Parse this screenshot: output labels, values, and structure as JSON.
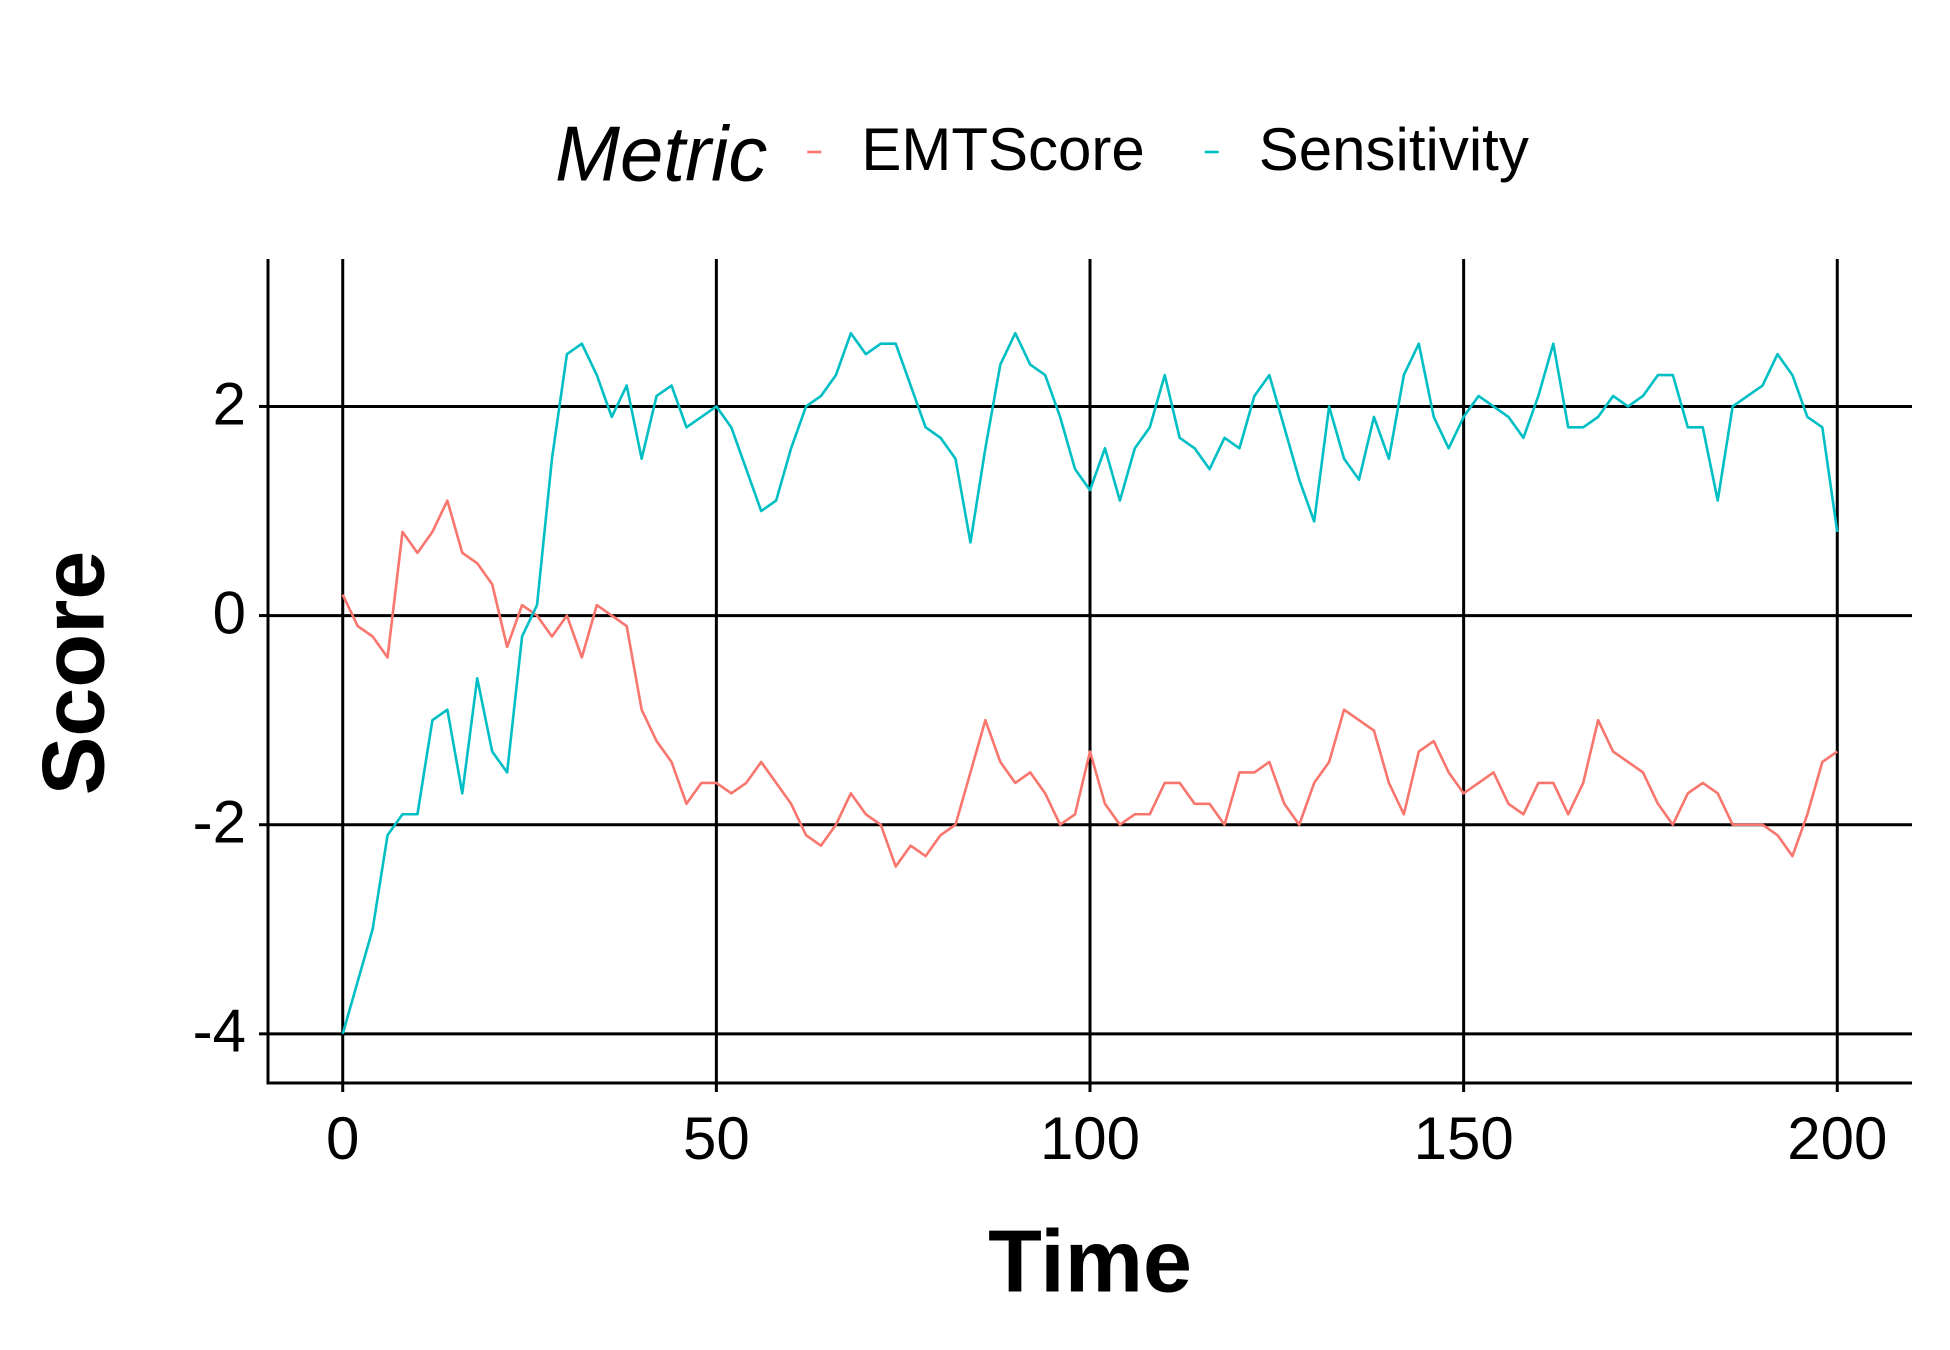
{
  "chart_data": {
    "type": "line",
    "x_label": "Time",
    "y_label": "Score",
    "legend_title": "Metric",
    "legend": "top",
    "grid": true,
    "xlim": [
      -10,
      210
    ],
    "ylim": [
      -4.47,
      3.41
    ],
    "xticks": [
      0,
      50,
      100,
      150,
      200
    ],
    "yticks": [
      -4,
      -2,
      0,
      2
    ],
    "x": [
      0,
      2,
      4,
      6,
      8,
      10,
      12,
      14,
      16,
      18,
      20,
      22,
      24,
      26,
      28,
      30,
      32,
      34,
      36,
      38,
      40,
      42,
      44,
      46,
      48,
      50,
      52,
      54,
      56,
      58,
      60,
      62,
      64,
      66,
      68,
      70,
      72,
      74,
      76,
      78,
      80,
      82,
      84,
      86,
      88,
      90,
      92,
      94,
      96,
      98,
      100,
      102,
      104,
      106,
      108,
      110,
      112,
      114,
      116,
      118,
      120,
      122,
      124,
      126,
      128,
      130,
      132,
      134,
      136,
      138,
      140,
      142,
      144,
      146,
      148,
      150,
      152,
      154,
      156,
      158,
      160,
      162,
      164,
      166,
      168,
      170,
      172,
      174,
      176,
      178,
      180,
      182,
      184,
      186,
      188,
      190,
      192,
      194,
      196,
      198,
      200
    ],
    "series": [
      {
        "name": "EMTScore",
        "color": "#F8766D",
        "values": [
          0.2,
          -0.1,
          -0.2,
          -0.4,
          0.8,
          0.6,
          0.8,
          1.1,
          0.6,
          0.5,
          0.3,
          -0.3,
          0.1,
          0.0,
          -0.2,
          0.0,
          -0.4,
          0.1,
          0.0,
          -0.1,
          -0.9,
          -1.2,
          -1.4,
          -1.8,
          -1.6,
          -1.6,
          -1.7,
          -1.6,
          -1.4,
          -1.6,
          -1.8,
          -2.1,
          -2.2,
          -2.0,
          -1.7,
          -1.9,
          -2.0,
          -2.4,
          -2.2,
          -2.3,
          -2.1,
          -2.0,
          -1.5,
          -1.0,
          -1.4,
          -1.6,
          -1.5,
          -1.7,
          -2.0,
          -1.9,
          -1.3,
          -1.8,
          -2.0,
          -1.9,
          -1.9,
          -1.6,
          -1.6,
          -1.8,
          -1.8,
          -2.0,
          -1.5,
          -1.5,
          -1.4,
          -1.8,
          -2.0,
          -1.6,
          -1.4,
          -0.9,
          -1.0,
          -1.1,
          -1.6,
          -1.9,
          -1.3,
          -1.2,
          -1.5,
          -1.7,
          -1.6,
          -1.5,
          -1.8,
          -1.9,
          -1.6,
          -1.6,
          -1.9,
          -1.6,
          -1.0,
          -1.3,
          -1.4,
          -1.5,
          -1.8,
          -2.0,
          -1.7,
          -1.6,
          -1.7,
          -2.0,
          -2.0,
          -2.0,
          -2.1,
          -2.3,
          -1.9,
          -1.4,
          -1.3
        ]
      },
      {
        "name": "Sensitivity",
        "color": "#00BFC4",
        "values": [
          -4.0,
          -3.5,
          -3.0,
          -2.1,
          -1.9,
          -1.9,
          -1.0,
          -0.9,
          -1.7,
          -0.6,
          -1.3,
          -1.5,
          -0.2,
          0.1,
          1.5,
          2.5,
          2.6,
          2.3,
          1.9,
          2.2,
          1.5,
          2.1,
          2.2,
          1.8,
          1.9,
          2.0,
          1.8,
          1.4,
          1.0,
          1.1,
          1.6,
          2.0,
          2.1,
          2.3,
          2.7,
          2.5,
          2.6,
          2.6,
          2.2,
          1.8,
          1.7,
          1.5,
          0.7,
          1.6,
          2.4,
          2.7,
          2.4,
          2.3,
          1.9,
          1.4,
          1.2,
          1.6,
          1.1,
          1.6,
          1.8,
          2.3,
          1.7,
          1.6,
          1.4,
          1.7,
          1.6,
          2.1,
          2.3,
          1.8,
          1.3,
          0.9,
          2.0,
          1.5,
          1.3,
          1.9,
          1.5,
          2.3,
          2.6,
          1.9,
          1.6,
          1.9,
          2.1,
          2.0,
          1.9,
          1.7,
          2.1,
          2.6,
          1.8,
          1.8,
          1.9,
          2.1,
          2.0,
          2.1,
          2.3,
          2.3,
          1.8,
          1.8,
          1.1,
          2.0,
          2.1,
          2.2,
          2.5,
          2.3,
          1.9,
          1.8,
          0.8
        ]
      }
    ]
  }
}
